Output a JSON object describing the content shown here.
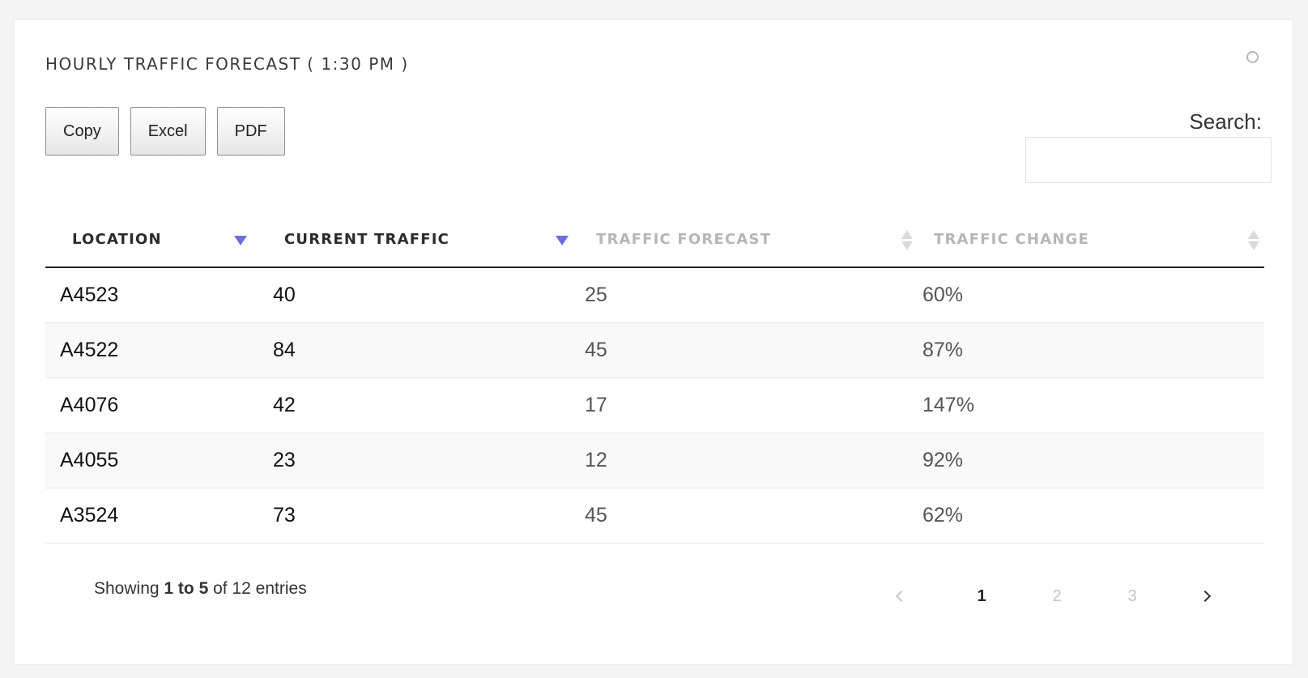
{
  "card": {
    "title": "HOURLY TRAFFIC FORECAST ( 1:30 PM )",
    "menu_icon": "circle-menu-icon"
  },
  "toolbar": {
    "copy_label": "Copy",
    "excel_label": "Excel",
    "pdf_label": "PDF"
  },
  "search": {
    "label": "Search:",
    "value": "",
    "placeholder": ""
  },
  "table": {
    "columns": [
      {
        "label": "LOCATION",
        "sort": "descending"
      },
      {
        "label": "CURRENT TRAFFIC",
        "sort": "descending"
      },
      {
        "label": "TRAFFIC FORECAST",
        "sort": "none"
      },
      {
        "label": "TRAFFIC CHANGE",
        "sort": "none"
      }
    ],
    "rows": [
      [
        "A4523",
        "40",
        "25",
        "60%"
      ],
      [
        "A4522",
        "84",
        "45",
        "87%"
      ],
      [
        "A4076",
        "42",
        "17",
        "147%"
      ],
      [
        "A4055",
        "23",
        "12",
        "92%"
      ],
      [
        "A3524",
        "73",
        "45",
        "62%"
      ]
    ]
  },
  "info": {
    "prefix": "Showing",
    "range": "1 to 5",
    "middle": "of",
    "total": "12",
    "suffix": "entries"
  },
  "pagination": {
    "pages": [
      "1",
      "2",
      "3"
    ],
    "active_page": "1"
  },
  "colors": {
    "sort_arrow": "#6f6fd8",
    "header_inactive": "#b6b6b6"
  }
}
